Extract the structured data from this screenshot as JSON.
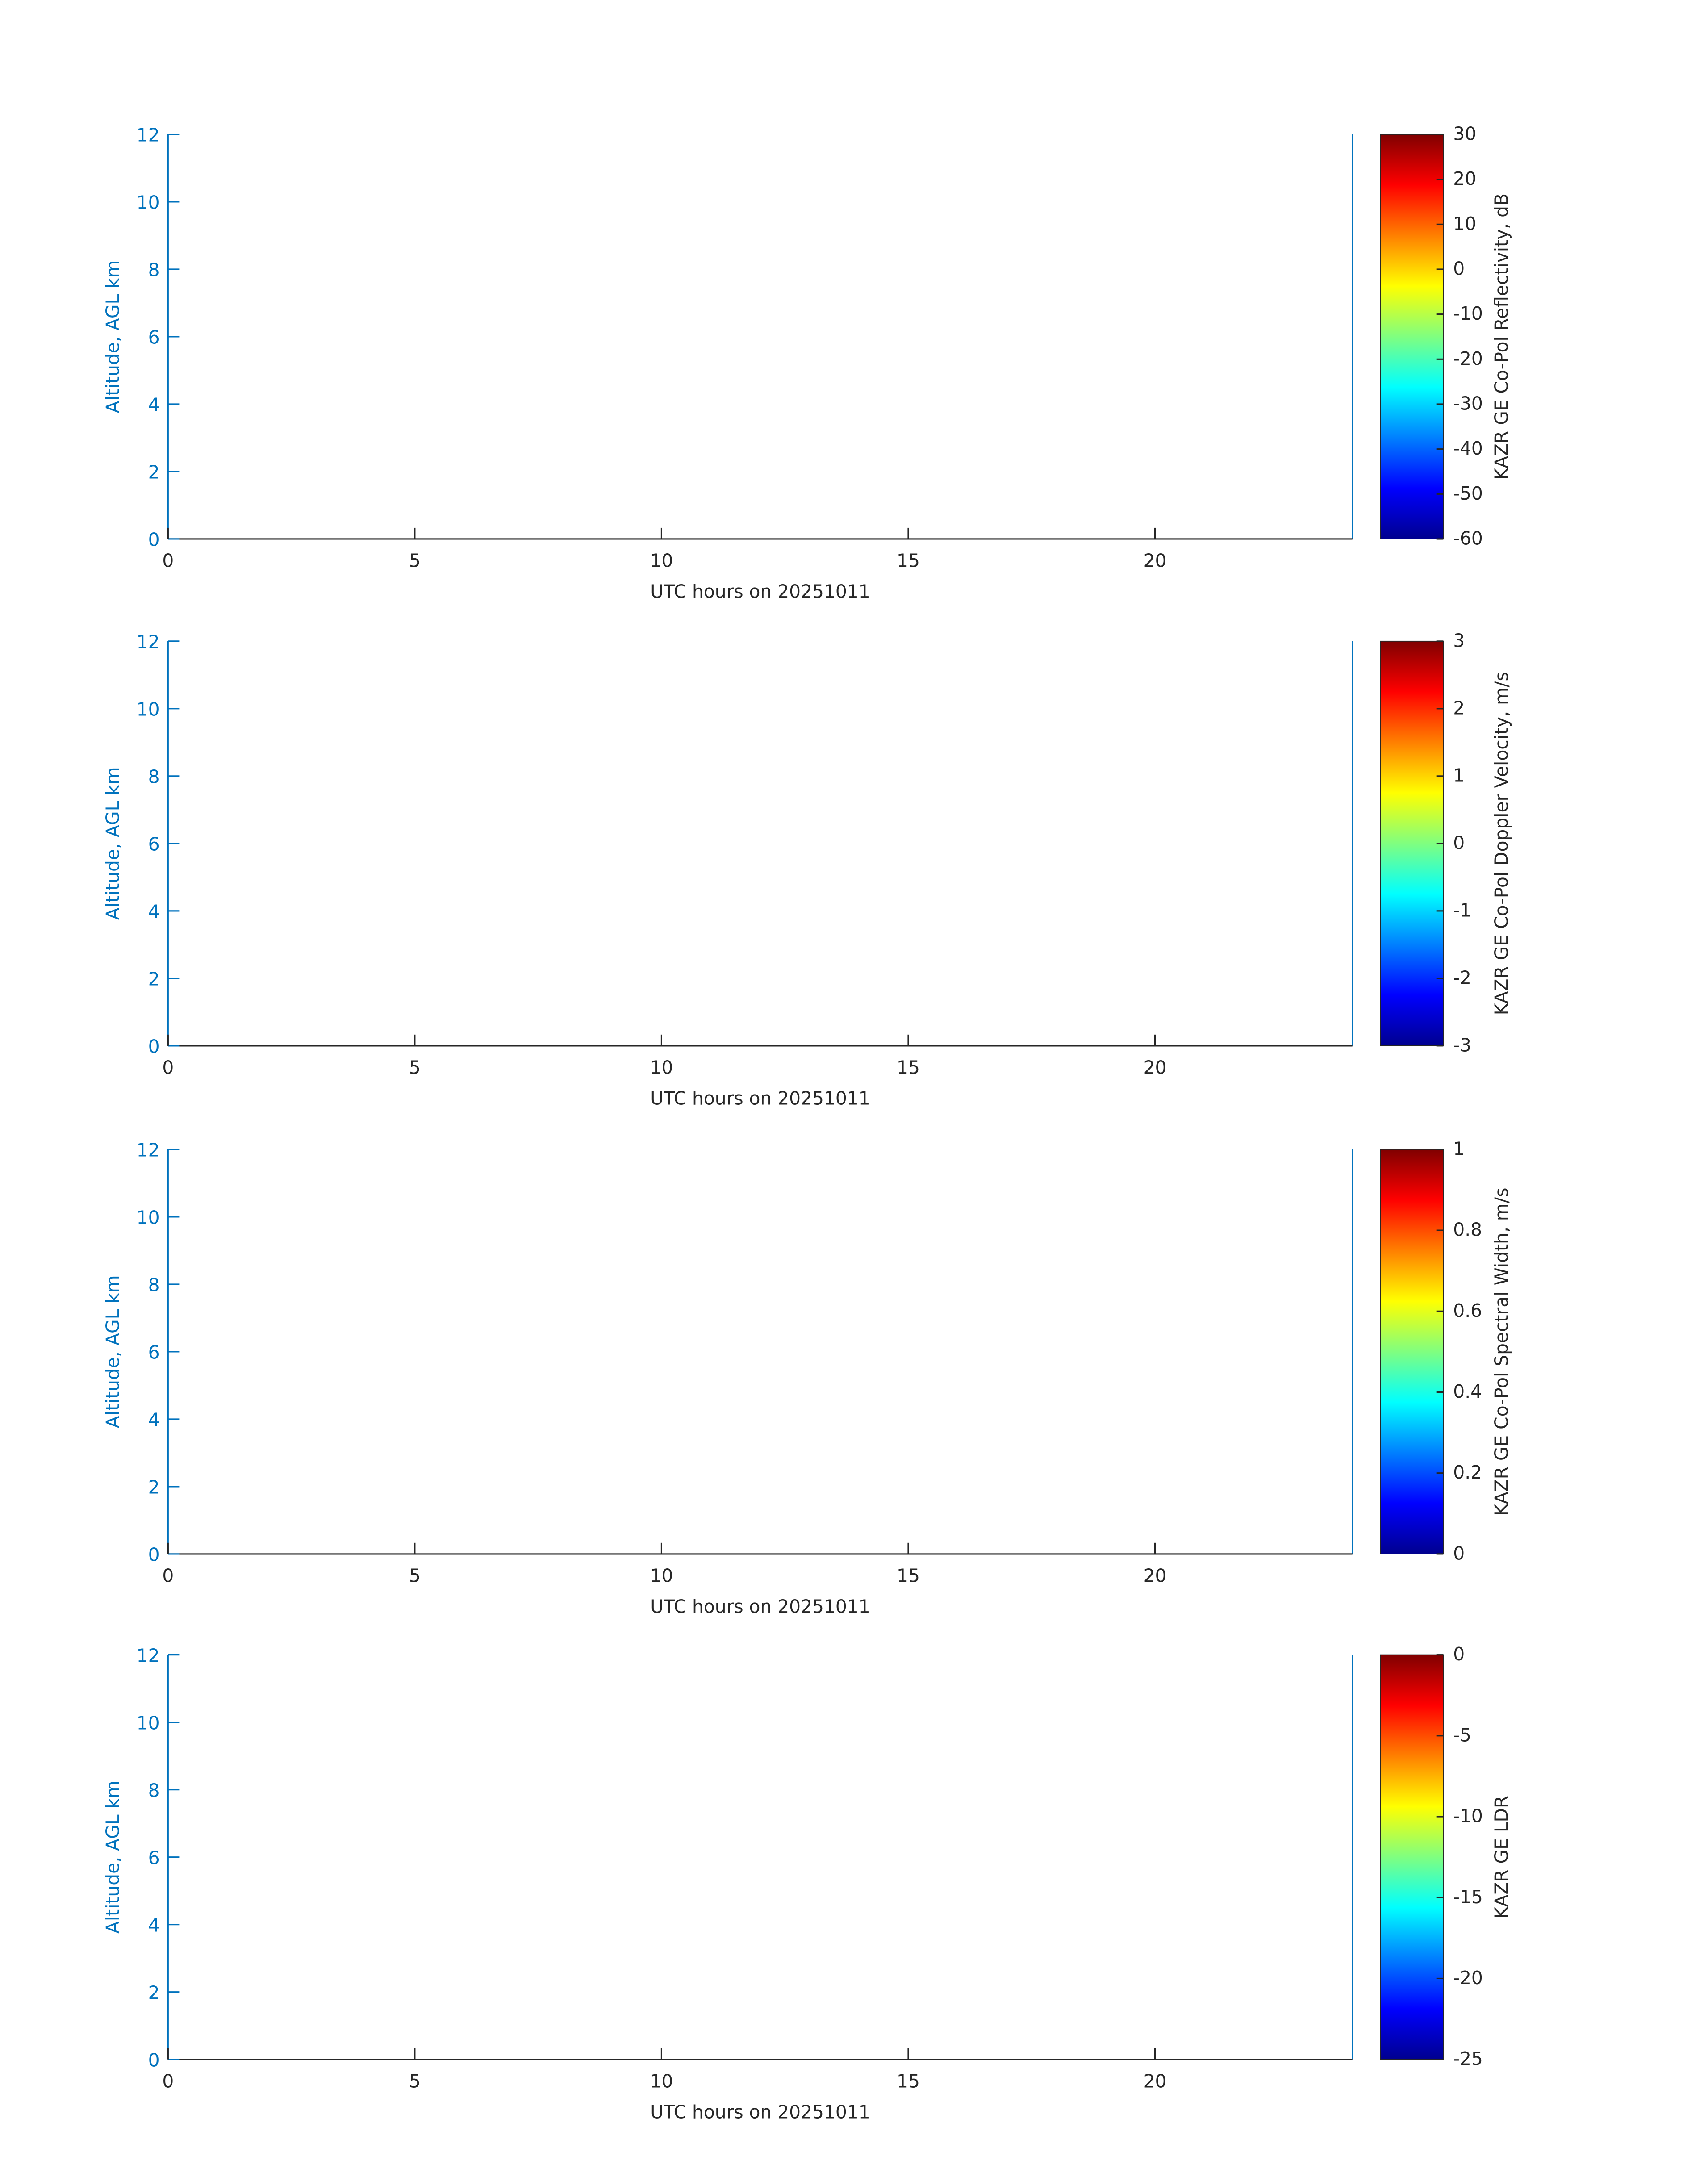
{
  "chart_data": [
    {
      "type": "heatmap",
      "xlabel": "UTC hours on 20251011",
      "ylabel": "Altitude, AGL km",
      "xlim": [
        0,
        24
      ],
      "xticks": [
        0,
        5,
        10,
        15,
        20
      ],
      "ylim": [
        0,
        12
      ],
      "yticks": [
        0,
        2,
        4,
        6,
        8,
        10,
        12
      ],
      "colormap": "jet",
      "colorbar": {
        "label": "KAZR GE Co-Pol Reflectivity, dB",
        "lim": [
          -60,
          30
        ],
        "ticks": [
          -60,
          -50,
          -40,
          -30,
          -20,
          -10,
          0,
          10,
          20,
          30
        ]
      }
    },
    {
      "type": "heatmap",
      "xlabel": "UTC hours on 20251011",
      "ylabel": "Altitude, AGL km",
      "xlim": [
        0,
        24
      ],
      "xticks": [
        0,
        5,
        10,
        15,
        20
      ],
      "ylim": [
        0,
        12
      ],
      "yticks": [
        0,
        2,
        4,
        6,
        8,
        10,
        12
      ],
      "colormap": "jet",
      "colorbar": {
        "label": "KAZR GE Co-Pol Doppler Velocity, m/s",
        "lim": [
          -3,
          3
        ],
        "ticks": [
          -3,
          -2,
          -1,
          0,
          1,
          2,
          3
        ]
      }
    },
    {
      "type": "heatmap",
      "xlabel": "UTC hours on 20251011",
      "ylabel": "Altitude, AGL km",
      "xlim": [
        0,
        24
      ],
      "xticks": [
        0,
        5,
        10,
        15,
        20
      ],
      "ylim": [
        0,
        12
      ],
      "yticks": [
        0,
        2,
        4,
        6,
        8,
        10,
        12
      ],
      "colormap": "jet",
      "colorbar": {
        "label": "KAZR GE Co-Pol Spectral Width, m/s",
        "lim": [
          0,
          1
        ],
        "ticks": [
          0,
          0.2,
          0.4,
          0.6,
          0.8,
          1
        ]
      }
    },
    {
      "type": "heatmap",
      "xlabel": "UTC hours on 20251011",
      "ylabel": "Altitude, AGL km",
      "xlim": [
        0,
        24
      ],
      "xticks": [
        0,
        5,
        10,
        15,
        20
      ],
      "ylim": [
        0,
        12
      ],
      "yticks": [
        0,
        2,
        4,
        6,
        8,
        10,
        12
      ],
      "colormap": "jet",
      "colorbar": {
        "label": "KAZR GE LDR",
        "lim": [
          -25,
          0
        ],
        "ticks": [
          -25,
          -20,
          -15,
          -10,
          -5,
          0
        ]
      }
    }
  ]
}
